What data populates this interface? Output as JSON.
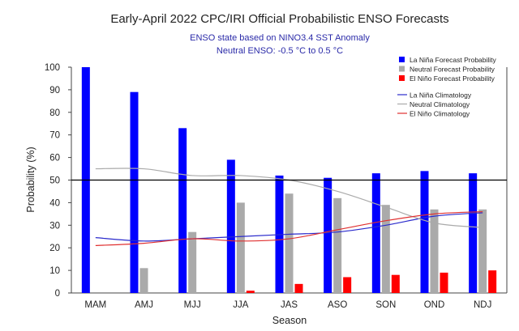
{
  "chart_data": {
    "type": "bar",
    "title": "Early-April 2022 CPC/IRI Official Probabilistic ENSO Forecasts",
    "subtitle_lines": [
      "ENSO state based on NINO3.4 SST Anomaly",
      "Neutral ENSO: -0.5 °C to 0.5 °C"
    ],
    "xlabel": "Season",
    "ylabel": "Probability (%)",
    "ylim": [
      0,
      100
    ],
    "yticks": [
      0,
      10,
      20,
      30,
      40,
      50,
      60,
      70,
      80,
      90,
      100
    ],
    "reference_line": 50,
    "categories": [
      "MAM",
      "AMJ",
      "MJJ",
      "JJA",
      "JAS",
      "ASO",
      "SON",
      "OND",
      "NDJ"
    ],
    "series": [
      {
        "name": "La Niña Forecast Probability",
        "kind": "bar",
        "color": "#0000ff",
        "values": [
          100,
          89,
          73,
          59,
          52,
          51,
          53,
          54,
          53
        ]
      },
      {
        "name": "Neutral Forecast Probability",
        "kind": "bar",
        "color": "#aaaaaa",
        "values": [
          0,
          11,
          27,
          40,
          44,
          42,
          39,
          37,
          37
        ]
      },
      {
        "name": "El Niño Forecast Probability",
        "kind": "bar",
        "color": "#ff0000",
        "values": [
          0,
          0,
          0,
          1,
          4,
          7,
          8,
          9,
          10
        ]
      }
    ],
    "lines": [
      {
        "name": "La Niña Climatology",
        "color": "#2a2acc",
        "values": [
          24.5,
          23,
          24,
          25,
          26,
          27,
          30,
          34,
          35.5
        ]
      },
      {
        "name": "Neutral Climatology",
        "color": "#aaaaaa",
        "values": [
          55,
          55,
          52,
          52,
          50,
          45,
          38,
          31,
          29
        ]
      },
      {
        "name": "El Niño Climatology",
        "color": "#e03030",
        "values": [
          21,
          22,
          24,
          23,
          24,
          28,
          32,
          35,
          36
        ]
      }
    ],
    "legend_position": "top-right",
    "grid": false
  }
}
